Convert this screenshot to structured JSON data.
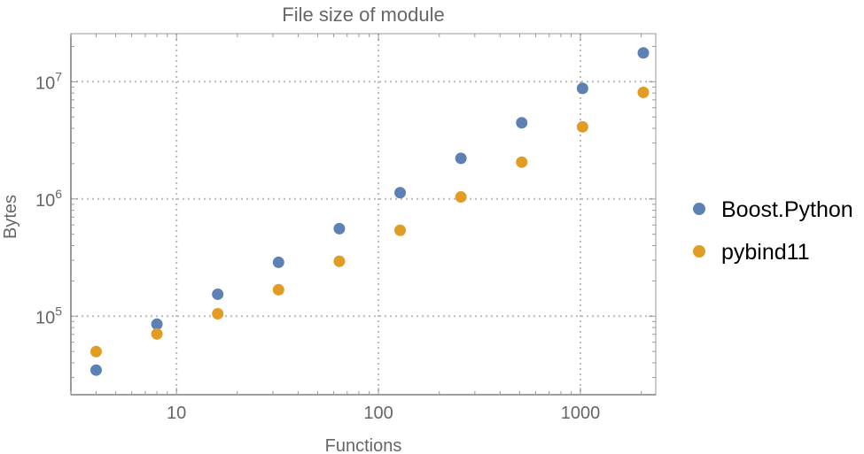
{
  "chart_data": {
    "type": "scatter",
    "title": "File size of module",
    "xlabel": "Functions",
    "ylabel": "Bytes",
    "x_scale": "log",
    "y_scale": "log",
    "xlim": [
      3.0,
      2360
    ],
    "ylim": [
      21400,
      25700000
    ],
    "grid": true,
    "legend_position": "right",
    "x_ticks": [
      {
        "value": 10,
        "label": "10"
      },
      {
        "value": 100,
        "label": "100"
      },
      {
        "value": 1000,
        "label": "1000"
      }
    ],
    "y_ticks": [
      {
        "value": 100000,
        "base": "10",
        "exp": "5"
      },
      {
        "value": 1000000,
        "base": "10",
        "exp": "6"
      },
      {
        "value": 10000000,
        "base": "10",
        "exp": "7"
      }
    ],
    "x": [
      4,
      8,
      16,
      32,
      64,
      128,
      256,
      512,
      1024,
      2048
    ],
    "series": [
      {
        "name": "Boost.Python",
        "color": "#5e81b5",
        "values": [
          34700,
          85500,
          154000,
          288000,
          558000,
          1130000,
          2220000,
          4460000,
          8770000,
          17600000
        ]
      },
      {
        "name": "pybind11",
        "color": "#e19c24",
        "values": [
          49900,
          70600,
          105000,
          168000,
          294000,
          540000,
          1040000,
          2060000,
          4120000,
          8110000
        ]
      }
    ]
  }
}
